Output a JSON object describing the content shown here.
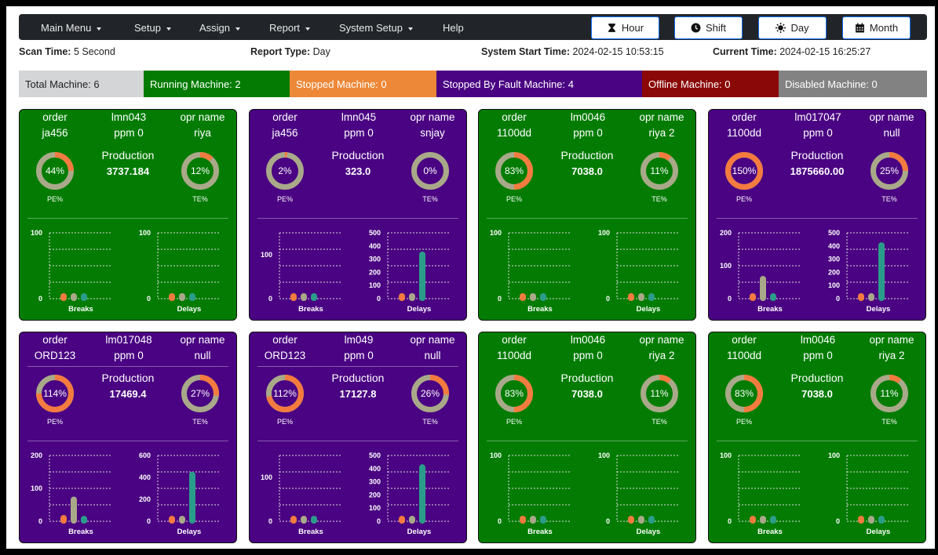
{
  "nav": {
    "menus": [
      "Main Menu",
      "Setup",
      "Assign",
      "Report",
      "System Setup"
    ],
    "help": "Help",
    "period_buttons": [
      {
        "label": "Hour",
        "icon": "hourglass-icon"
      },
      {
        "label": "Shift",
        "icon": "clock-icon"
      },
      {
        "label": "Day",
        "icon": "sun-icon"
      },
      {
        "label": "Month",
        "icon": "calendar-icon"
      }
    ]
  },
  "info": {
    "scan_time_label": "Scan Time:",
    "scan_time": "5 Second",
    "report_type_label": "Report Type:",
    "report_type": "Day",
    "start_time_label": "System Start Time:",
    "start_time": "2024-02-15 10:53:15",
    "current_time_label": "Current Time:",
    "current_time": "2024-02-15 16:25:27"
  },
  "status": [
    {
      "label": "Total Machine: 6",
      "bg": "#d4d5d7",
      "fg": "#222222"
    },
    {
      "label": "Running Machine: 2",
      "bg": "#047c04",
      "fg": "#ffffff"
    },
    {
      "label": "Stopped Machine: 0",
      "bg": "#ed8838",
      "fg": "#ffffff"
    },
    {
      "label": "Stopped By Fault Machine: 4",
      "bg": "#4a0382",
      "fg": "#ffffff"
    },
    {
      "label": "Offline Machine: 0",
      "bg": "#8b0808",
      "fg": "#ffffff"
    },
    {
      "label": "Disabled Machine: 0",
      "bg": "#828282",
      "fg": "#ffffff"
    }
  ],
  "colors": {
    "running": "#047c04",
    "fault": "#4a0382",
    "orange": "#f37b3f",
    "tan": "#a9a98a",
    "teal": "#2a9d8a"
  },
  "labels": {
    "order": "order",
    "opr": "opr name",
    "production": "Production",
    "pe": "PE%",
    "te": "TE%",
    "breaks": "Breaks",
    "delays": "Delays"
  },
  "cards": [
    {
      "state": "running",
      "order": "ja456",
      "machine": "lmn043",
      "ppm": "ppm 0",
      "opr": "riya",
      "production": "3737.184",
      "pe": "44%",
      "pe_fill": 0.25,
      "te": "12%",
      "te_fill": 0.12,
      "breaks": {
        "ticks": [
          0,
          100
        ],
        "max": 100,
        "values": [
          0,
          0,
          0
        ]
      },
      "delays": {
        "ticks": [
          0,
          100
        ],
        "max": 100,
        "values": [
          0,
          0,
          0
        ]
      }
    },
    {
      "state": "fault",
      "order": "ja456",
      "machine": "lmn045",
      "ppm": "ppm 0",
      "opr": "snjay",
      "production": "323.0",
      "pe": "2%",
      "pe_fill": 0.02,
      "te": "0%",
      "te_fill": 0,
      "breaks": {
        "ticks": [
          0,
          100
        ],
        "max": 150,
        "values": [
          0,
          0,
          0
        ]
      },
      "delays": {
        "ticks": [
          0,
          100,
          200,
          300,
          400,
          500
        ],
        "max": 500,
        "values": [
          0,
          0,
          340
        ]
      }
    },
    {
      "state": "running",
      "order": "1100dd",
      "machine": "lm0046",
      "ppm": "ppm 0",
      "opr": "riya 2",
      "production": "7038.0",
      "pe": "83%",
      "pe_fill": 0.5,
      "te": "11%",
      "te_fill": 0.11,
      "breaks": {
        "ticks": [
          0,
          100
        ],
        "max": 100,
        "values": [
          0,
          0,
          0
        ]
      },
      "delays": {
        "ticks": [
          0,
          100
        ],
        "max": 100,
        "values": [
          0,
          0,
          0
        ]
      }
    },
    {
      "state": "fault",
      "order": "1100dd",
      "machine": "lm017047",
      "ppm": "ppm 0",
      "opr": "null",
      "production": "1875660.00",
      "pe": "150%",
      "pe_fill": 1.0,
      "te": "25%",
      "te_fill": 0.25,
      "breaks": {
        "ticks": [
          0,
          100,
          200
        ],
        "max": 200,
        "values": [
          8,
          62,
          2
        ]
      },
      "delays": {
        "ticks": [
          0,
          100,
          200,
          300,
          400,
          500
        ],
        "max": 500,
        "values": [
          0,
          0,
          410
        ]
      }
    },
    {
      "state": "fault",
      "order": "ORD123",
      "machine": "lm017048",
      "ppm": "ppm 0",
      "opr": "null",
      "production": "17469.4",
      "pe": "114%",
      "pe_fill": 0.75,
      "te": "27%",
      "te_fill": 0.27,
      "breaks": {
        "ticks": [
          0,
          100,
          200
        ],
        "max": 200,
        "values": [
          12,
          68,
          2
        ]
      },
      "delays": {
        "ticks": [
          0,
          200,
          400,
          600
        ],
        "max": 600,
        "values": [
          0,
          0,
          430
        ]
      }
    },
    {
      "state": "fault",
      "order": "ORD123",
      "machine": "lm049",
      "ppm": "ppm 0",
      "opr": "null",
      "production": "17127.8",
      "pe": "112%",
      "pe_fill": 0.72,
      "te": "26%",
      "te_fill": 0.26,
      "breaks": {
        "ticks": [
          0,
          100
        ],
        "max": 150,
        "values": [
          4,
          0,
          0
        ]
      },
      "delays": {
        "ticks": [
          0,
          100,
          200,
          300,
          400,
          500
        ],
        "max": 500,
        "values": [
          0,
          0,
          415
        ]
      }
    },
    {
      "state": "running",
      "order": "1100dd",
      "machine": "lm0046",
      "ppm": "ppm 0",
      "opr": "riya 2",
      "production": "7038.0",
      "pe": "83%",
      "pe_fill": 0.5,
      "te": "11%",
      "te_fill": 0.11,
      "breaks": {
        "ticks": [
          0,
          100
        ],
        "max": 100,
        "values": [
          0,
          0,
          0
        ]
      },
      "delays": {
        "ticks": [
          0,
          100
        ],
        "max": 100,
        "values": [
          0,
          0,
          0
        ]
      }
    },
    {
      "state": "running",
      "order": "1100dd",
      "machine": "lm0046",
      "ppm": "ppm 0",
      "opr": "riya 2",
      "production": "7038.0",
      "pe": "83%",
      "pe_fill": 0.5,
      "te": "11%",
      "te_fill": 0.11,
      "breaks": {
        "ticks": [
          0,
          100
        ],
        "max": 100,
        "values": [
          0,
          0,
          0
        ]
      },
      "delays": {
        "ticks": [
          0,
          100
        ],
        "max": 100,
        "values": [
          0,
          0,
          0
        ]
      }
    }
  ]
}
